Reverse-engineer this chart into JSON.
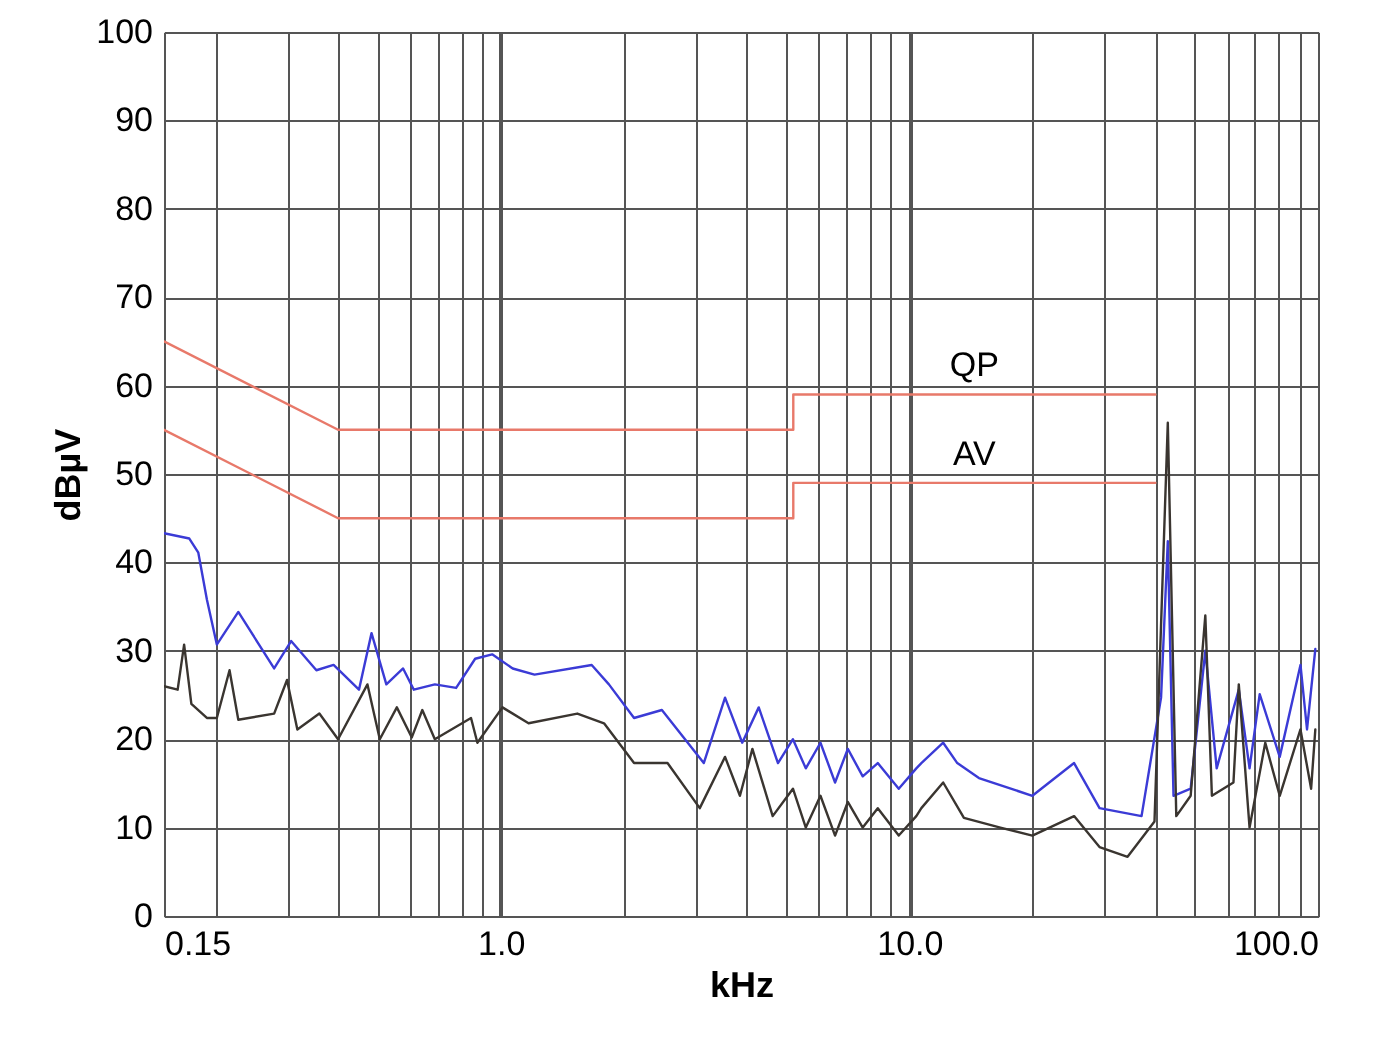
{
  "chart_data": {
    "type": "line",
    "xlabel": "kHz",
    "ylabel": "dBµV",
    "log": "x",
    "grid": true,
    "xlim": [
      0.15,
      100
    ],
    "ylim": [
      0,
      100
    ],
    "xticks": [
      0.15,
      {
        "value": 0.2,
        "label": null
      },
      {
        "value": 0.3,
        "label": null
      },
      {
        "value": 0.4,
        "label": null
      },
      {
        "value": 0.5,
        "label": null
      },
      {
        "value": 0.6,
        "label": null
      },
      {
        "value": 0.7,
        "label": null
      },
      {
        "value": 0.8,
        "label": null
      },
      {
        "value": 0.9,
        "label": null
      },
      {
        "value": 1,
        "label": "1.0"
      },
      {
        "value": 2,
        "label": null
      },
      {
        "value": 3,
        "label": null
      },
      {
        "value": 4,
        "label": null
      },
      {
        "value": 5,
        "label": null
      },
      {
        "value": 6,
        "label": null
      },
      {
        "value": 7,
        "label": null
      },
      {
        "value": 8,
        "label": null
      },
      {
        "value": 9,
        "label": null
      },
      {
        "value": 10,
        "label": "10.0"
      },
      {
        "value": 20,
        "label": null
      },
      {
        "value": 30,
        "label": null
      },
      {
        "value": 40,
        "label": null
      },
      {
        "value": 50,
        "label": null
      },
      {
        "value": 60,
        "label": null
      },
      {
        "value": 70,
        "label": null
      },
      {
        "value": 80,
        "label": null
      },
      {
        "value": 90,
        "label": null
      },
      {
        "value": 100,
        "label": "100.0"
      }
    ],
    "yticks": [
      0,
      10,
      20,
      30,
      40,
      50,
      60,
      70,
      80,
      90,
      100
    ],
    "series": [
      {
        "name": "QP",
        "color": "#e8796a",
        "x": [
          0.15,
          0.4,
          5.2,
          5.2,
          40
        ],
        "values": [
          65,
          55,
          55,
          59,
          59
        ]
      },
      {
        "name": "AV",
        "color": "#e8796a",
        "x": [
          0.15,
          0.4,
          5.2,
          5.2,
          40
        ],
        "values": [
          55,
          45,
          45,
          49,
          49
        ]
      },
      {
        "color": "#3b3bd6",
        "x": [
          0.15,
          0.173,
          0.182,
          0.191,
          0.202,
          0.228,
          0.279,
          0.307,
          0.354,
          0.39,
          0.45,
          0.483,
          0.525,
          0.577,
          0.613,
          0.69,
          0.778,
          0.866,
          0.953,
          1.07,
          1.21,
          1.67,
          1.84,
          2.12,
          2.48,
          3.14,
          3.54,
          3.9,
          4.28,
          4.77,
          5.19,
          5.58,
          6.06,
          6.58,
          7.07,
          7.69,
          8.37,
          9.42,
          10.4,
          10.7,
          12.1,
          13.1,
          14.8,
          20,
          25.3,
          29.2,
          37,
          41.3,
          42.9,
          44.3,
          48.8,
          53,
          56.5,
          64,
          68,
          72,
          80.6,
          90.6,
          94,
          98.5
        ],
        "values": [
          43.3,
          42.7,
          41.1,
          35.8,
          30.7,
          34.4,
          28,
          31.1,
          27.8,
          28.4,
          25.6,
          32,
          26.2,
          28,
          25.6,
          26.2,
          25.8,
          29.1,
          29.6,
          28,
          27.3,
          28.4,
          26.2,
          22.4,
          23.3,
          17.3,
          24.7,
          19.6,
          23.6,
          17.3,
          20,
          16.7,
          19.6,
          15.1,
          18.9,
          15.8,
          17.3,
          14.4,
          16.7,
          17.3,
          19.6,
          17.3,
          15.6,
          13.6,
          17.3,
          12.2,
          11.3,
          24.7,
          42.4,
          13.6,
          14.4,
          30,
          16.7,
          25.6,
          16.7,
          25.1,
          18,
          28.4,
          21.1,
          30.2
        ]
      },
      {
        "color": "#3a3530",
        "x": [
          0.15,
          0.162,
          0.168,
          0.175,
          0.191,
          0.202,
          0.217,
          0.228,
          0.279,
          0.3,
          0.318,
          0.36,
          0.4,
          0.472,
          0.506,
          0.557,
          0.606,
          0.643,
          0.69,
          0.846,
          0.877,
          1.01,
          1.17,
          1.54,
          1.79,
          2.12,
          2.56,
          3.07,
          3.54,
          3.85,
          4.13,
          4.63,
          5.19,
          5.58,
          6.06,
          6.58,
          7.07,
          7.69,
          8.37,
          9.42,
          10.4,
          10.7,
          12.1,
          13.6,
          16.7,
          20,
          25.3,
          29.2,
          34.2,
          39.8,
          42.9,
          45,
          48.8,
          53,
          55,
          62.1,
          64,
          68,
          74.3,
          80.6,
          90.6,
          96.2,
          98.5
        ],
        "values": [
          26,
          25.6,
          30.7,
          24,
          22.4,
          22.4,
          27.8,
          22.2,
          22.9,
          26.7,
          21.1,
          22.9,
          20,
          26.2,
          20,
          23.6,
          20.2,
          23.3,
          20,
          22.4,
          19.6,
          23.6,
          21.8,
          22.9,
          21.8,
          17.3,
          17.3,
          12.2,
          18,
          13.6,
          18.9,
          11.3,
          14.4,
          10,
          13.6,
          9.1,
          12.9,
          10,
          12.2,
          9.1,
          11.3,
          12.2,
          15.1,
          11.1,
          10,
          9.1,
          11.3,
          7.8,
          6.7,
          10.7,
          55.8,
          11.3,
          13.6,
          34,
          13.6,
          15.1,
          26.2,
          10,
          19.6,
          13.6,
          21.1,
          14.4,
          21.1
        ]
      }
    ]
  }
}
